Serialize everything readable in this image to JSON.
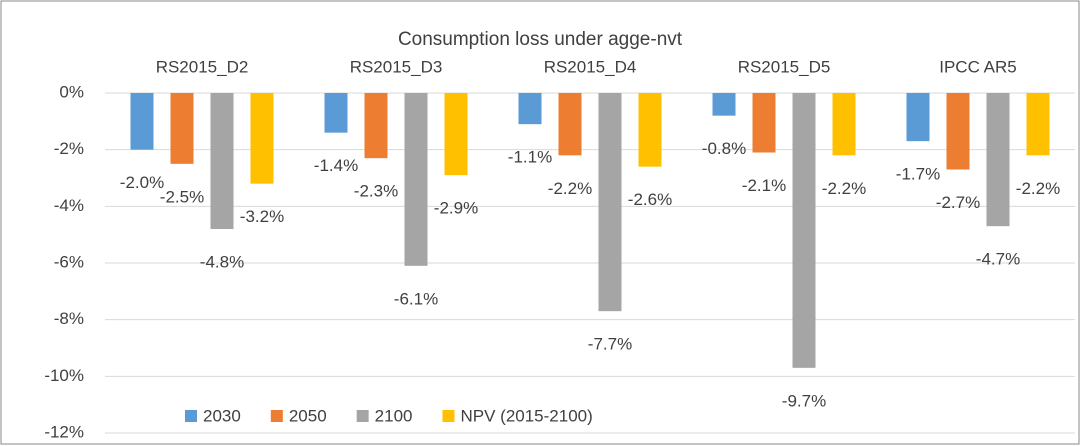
{
  "chart_data": {
    "type": "bar",
    "title": "Consumption loss under agge-nvt",
    "categories": [
      "RS2015_D2",
      "RS2015_D3",
      "RS2015_D4",
      "RS2015_D5",
      "IPCC AR5"
    ],
    "series": [
      {
        "name": "2030",
        "color": "#5b9bd5",
        "values": [
          -2.0,
          -1.4,
          -1.1,
          -0.8,
          -1.7
        ],
        "value_labels": [
          "-2.0%",
          "-1.4%",
          "-1.1%",
          "-0.8%",
          "-1.7%"
        ]
      },
      {
        "name": "2050",
        "color": "#ed7d31",
        "values": [
          -2.5,
          -2.3,
          -2.2,
          -2.1,
          -2.7
        ],
        "value_labels": [
          "-2.5%",
          "-2.3%",
          "-2.2%",
          "-2.1%",
          "-2.7%"
        ]
      },
      {
        "name": "2100",
        "color": "#a5a5a5",
        "values": [
          -4.8,
          -6.1,
          -7.7,
          -9.7,
          -4.7
        ],
        "value_labels": [
          "-4.8%",
          "-6.1%",
          "-7.7%",
          "-9.7%",
          "-4.7%"
        ]
      },
      {
        "name": "NPV (2015-2100)",
        "color": "#ffc000",
        "values": [
          -3.2,
          -2.9,
          -2.6,
          -2.2,
          -2.2
        ],
        "value_labels": [
          "-3.2%",
          "-2.9%",
          "-2.6%",
          "-2.2%",
          "-2.2%"
        ]
      }
    ],
    "ylim": [
      -12,
      0
    ],
    "yticks": [
      {
        "value": 0,
        "label": "0%"
      },
      {
        "value": -2,
        "label": "-2%"
      },
      {
        "value": -4,
        "label": "-4%"
      },
      {
        "value": -6,
        "label": "-6%"
      },
      {
        "value": -8,
        "label": "-8%"
      },
      {
        "value": -10,
        "label": "-10%"
      },
      {
        "value": -12,
        "label": "-12%"
      }
    ],
    "grid": true,
    "legend": "bottom"
  }
}
